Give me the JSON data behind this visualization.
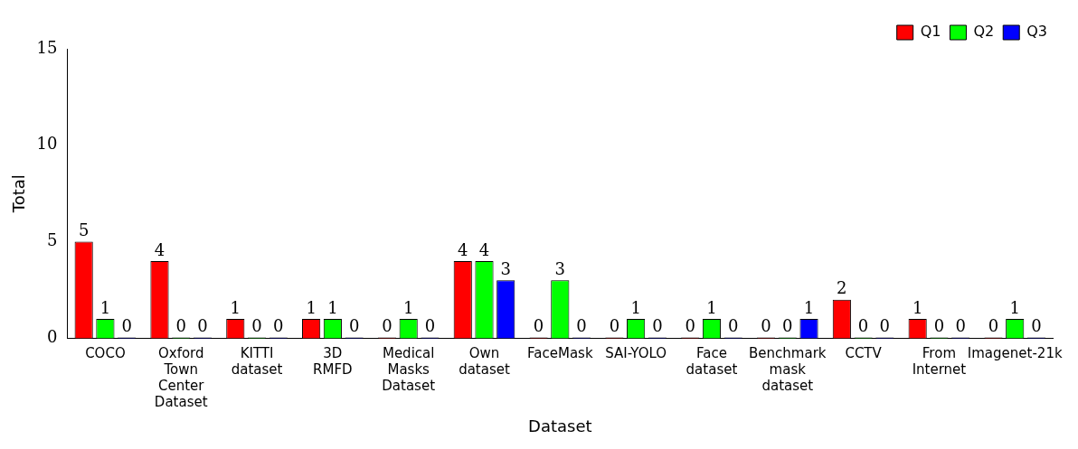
{
  "chart_data": {
    "type": "bar",
    "xlabel": "Dataset",
    "ylabel": "Total",
    "categories": [
      "COCO",
      "Oxford Town Center Dataset",
      "KITTI dataset",
      "3D RMFD",
      "Medical Masks Dataset",
      "Own dataset",
      "FaceMask",
      "SAI-YOLO",
      "Face dataset",
      "Benchmark mask dataset",
      "CCTV",
      "From Internet",
      "Imagenet-21k"
    ],
    "series": [
      {
        "name": "Q1",
        "color": "#ff0000",
        "values": [
          5,
          4,
          1,
          1,
          0,
          4,
          0,
          0,
          0,
          0,
          2,
          1,
          0
        ]
      },
      {
        "name": "Q2",
        "color": "#00ff00",
        "values": [
          1,
          0,
          0,
          1,
          1,
          4,
          3,
          1,
          1,
          0,
          0,
          0,
          1
        ]
      },
      {
        "name": "Q3",
        "color": "#0000ff",
        "values": [
          0,
          0,
          0,
          0,
          0,
          3,
          0,
          0,
          0,
          1,
          0,
          0,
          0
        ]
      }
    ],
    "ylim": [
      0,
      15
    ],
    "yticks": [
      0,
      5,
      10,
      15
    ],
    "grid": false,
    "legend": "top right",
    "data_labels": true
  }
}
